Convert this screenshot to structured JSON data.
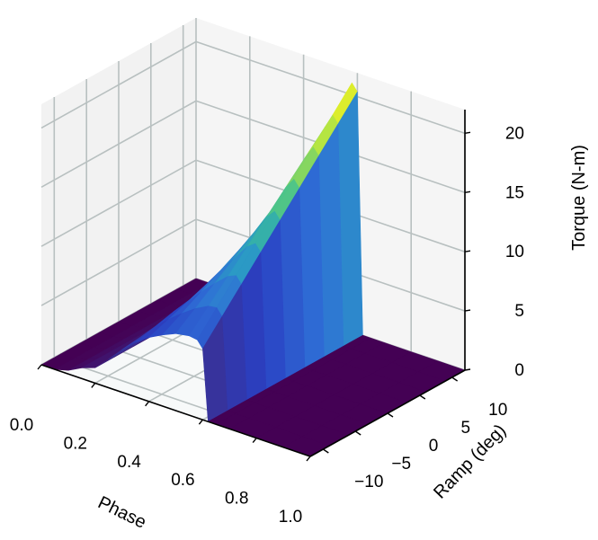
{
  "chart_data": {
    "type": "surface3d",
    "title": "",
    "x_axis": {
      "label": "Phase",
      "range": [
        0.0,
        1.0
      ],
      "ticks": [
        {
          "value": 0.0,
          "label": "0.0"
        },
        {
          "value": 0.2,
          "label": "0.2"
        },
        {
          "value": 0.4,
          "label": "0.4"
        },
        {
          "value": 0.6,
          "label": "0.6"
        },
        {
          "value": 0.8,
          "label": "0.8"
        },
        {
          "value": 1.0,
          "label": "1.0"
        }
      ]
    },
    "y_axis": {
      "label": "Ramp (deg)",
      "range": [
        -12,
        12
      ],
      "ticks": [
        {
          "value": -10,
          "label": "−10"
        },
        {
          "value": -5,
          "label": "−5"
        },
        {
          "value": 0,
          "label": "0"
        },
        {
          "value": 5,
          "label": "5"
        },
        {
          "value": 10,
          "label": "10"
        }
      ]
    },
    "z_axis": {
      "label": "Torque (N-m)",
      "range": [
        0,
        22
      ],
      "ticks": [
        {
          "value": 0,
          "label": "0"
        },
        {
          "value": 5,
          "label": "5"
        },
        {
          "value": 10,
          "label": "10"
        },
        {
          "value": 15,
          "label": "15"
        },
        {
          "value": 20,
          "label": "20"
        }
      ]
    },
    "surface": {
      "phase": [
        0.0,
        0.05,
        0.1,
        0.15,
        0.2,
        0.25,
        0.3,
        0.35,
        0.4,
        0.45,
        0.5,
        0.55,
        0.58,
        0.6,
        0.62,
        0.65,
        0.7,
        0.8,
        0.9,
        1.0
      ],
      "ramp": [
        -12,
        -9,
        -6,
        -3,
        0,
        3,
        6,
        9,
        12
      ],
      "torque": [
        [
          0,
          0,
          0,
          0,
          0,
          0,
          0,
          0,
          0
        ],
        [
          0,
          0,
          0,
          0,
          0,
          0,
          0,
          0,
          0
        ],
        [
          0.3,
          0.3,
          0.3,
          0.3,
          0.3,
          0.3,
          0.3,
          0.3,
          0.3
        ],
        [
          0.9,
          0.9,
          0.9,
          0.9,
          0.9,
          0.9,
          0.9,
          0.9,
          0.9
        ],
        [
          1.3,
          1.3,
          1.3,
          1.3,
          1.3,
          1.3,
          1.3,
          1.3,
          1.3
        ],
        [
          2.4,
          2.4,
          2.4,
          2.4,
          2.4,
          2.4,
          2.4,
          2.4,
          2.4
        ],
        [
          3.6,
          3.8,
          4.0,
          4.2,
          4.4,
          4.6,
          4.8,
          5.0,
          5.2
        ],
        [
          4.6,
          5.0,
          5.4,
          5.7,
          6.0,
          6.3,
          6.6,
          6.9,
          7.2
        ],
        [
          5.4,
          6.0,
          6.6,
          7.2,
          7.8,
          8.4,
          9.0,
          9.6,
          10.2
        ],
        [
          6.0,
          6.9,
          7.8,
          8.7,
          9.6,
          10.5,
          11.4,
          12.3,
          13.2
        ],
        [
          6.5,
          7.7,
          8.9,
          10.1,
          11.3,
          12.5,
          13.7,
          14.9,
          16.1
        ],
        [
          6.7,
          8.3,
          9.9,
          11.5,
          13.1,
          14.7,
          16.3,
          17.9,
          19.5
        ],
        [
          6.6,
          8.4,
          10.2,
          12.0,
          13.8,
          15.6,
          17.4,
          19.2,
          21.0
        ],
        [
          6.0,
          7.8,
          9.6,
          11.4,
          13.2,
          15.0,
          16.8,
          18.6,
          20.4
        ],
        [
          0,
          0,
          0,
          0,
          0,
          0,
          0,
          0,
          0
        ],
        [
          0,
          0,
          0,
          0,
          0,
          0,
          0,
          0,
          0
        ],
        [
          0,
          0,
          0,
          0,
          0,
          0,
          0,
          0,
          0
        ],
        [
          0,
          0,
          0,
          0,
          0,
          0,
          0,
          0,
          0
        ],
        [
          0,
          0,
          0,
          0,
          0,
          0,
          0,
          0,
          0
        ],
        [
          0,
          0,
          0,
          0,
          0,
          0,
          0,
          0,
          0
        ]
      ]
    },
    "colormap": [
      "#440154",
      "#3b2f8f",
      "#2a3fc2",
      "#2f6fd6",
      "#2b9cc4",
      "#3cbf95",
      "#8fd95a",
      "#d4ef2e",
      "#fde725"
    ],
    "colors": {
      "pane_fill": "#f2f2f2",
      "grid": "#b8c0c0",
      "axis_line": "#000000"
    },
    "grid": true
  }
}
